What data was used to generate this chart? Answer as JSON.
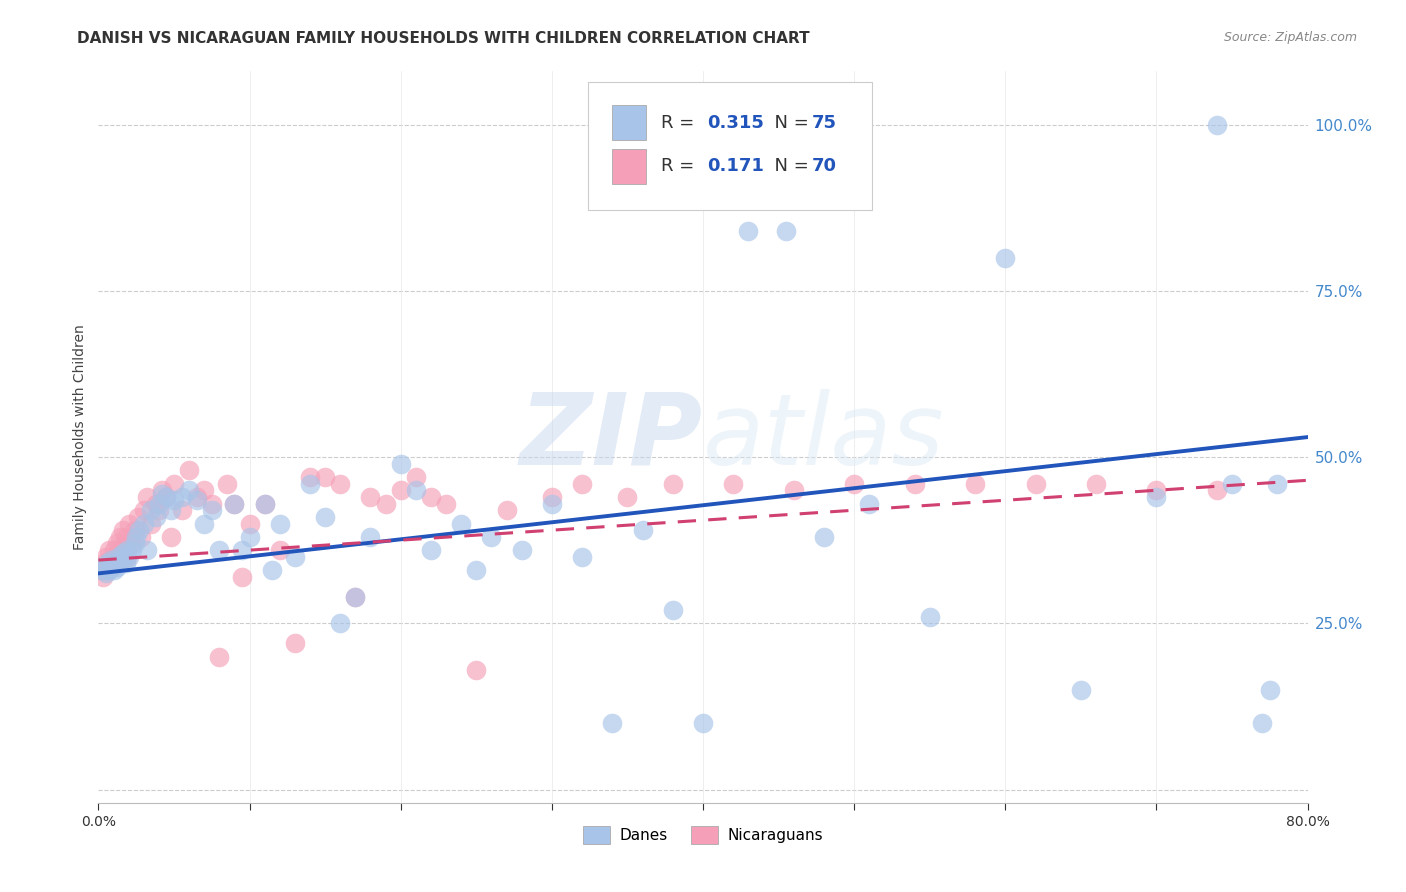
{
  "title": "DANISH VS NICARAGUAN FAMILY HOUSEHOLDS WITH CHILDREN CORRELATION CHART",
  "source": "Source: ZipAtlas.com",
  "ylabel": "Family Households with Children",
  "xlim": [
    0.0,
    0.8
  ],
  "ylim": [
    -0.02,
    1.08
  ],
  "ytick_vals": [
    0.0,
    0.25,
    0.5,
    0.75,
    1.0
  ],
  "xtick_vals": [
    0.0,
    0.1,
    0.2,
    0.3,
    0.4,
    0.5,
    0.6,
    0.7,
    0.8
  ],
  "danes_color": "#a8c4e8",
  "nicaraguans_color": "#f5a0b8",
  "danes_line_color": "#2255bb",
  "nicaraguans_line_color": "#d04070",
  "danes_R": 0.315,
  "danes_N": 75,
  "nicaraguans_R": 0.171,
  "nicaraguans_N": 70,
  "watermark_zip": "ZIP",
  "watermark_atlas": "atlas",
  "background_color": "#ffffff",
  "grid_color": "#cccccc",
  "title_fontsize": 11,
  "label_fontsize": 10,
  "tick_fontsize": 10,
  "legend_fontsize": 13,
  "danes_x": [
    0.003,
    0.004,
    0.005,
    0.006,
    0.007,
    0.008,
    0.009,
    0.01,
    0.011,
    0.012,
    0.013,
    0.014,
    0.015,
    0.016,
    0.017,
    0.018,
    0.019,
    0.02,
    0.022,
    0.024,
    0.025,
    0.027,
    0.03,
    0.032,
    0.035,
    0.038,
    0.04,
    0.042,
    0.045,
    0.048,
    0.05,
    0.055,
    0.06,
    0.065,
    0.07,
    0.075,
    0.08,
    0.09,
    0.095,
    0.1,
    0.11,
    0.115,
    0.12,
    0.13,
    0.14,
    0.15,
    0.16,
    0.17,
    0.18,
    0.2,
    0.21,
    0.22,
    0.24,
    0.25,
    0.26,
    0.28,
    0.3,
    0.32,
    0.34,
    0.36,
    0.38,
    0.4,
    0.43,
    0.455,
    0.48,
    0.51,
    0.55,
    0.6,
    0.65,
    0.7,
    0.74,
    0.75,
    0.77,
    0.775,
    0.78
  ],
  "danes_y": [
    0.335,
    0.33,
    0.325,
    0.34,
    0.33,
    0.345,
    0.335,
    0.33,
    0.34,
    0.335,
    0.35,
    0.34,
    0.345,
    0.355,
    0.35,
    0.34,
    0.36,
    0.35,
    0.36,
    0.37,
    0.38,
    0.39,
    0.4,
    0.36,
    0.42,
    0.41,
    0.43,
    0.445,
    0.44,
    0.42,
    0.435,
    0.44,
    0.45,
    0.435,
    0.4,
    0.42,
    0.36,
    0.43,
    0.36,
    0.38,
    0.43,
    0.33,
    0.4,
    0.35,
    0.46,
    0.41,
    0.25,
    0.29,
    0.38,
    0.49,
    0.45,
    0.36,
    0.4,
    0.33,
    0.38,
    0.36,
    0.43,
    0.35,
    0.1,
    0.39,
    0.27,
    0.1,
    0.84,
    0.84,
    0.38,
    0.43,
    0.26,
    0.8,
    0.15,
    0.44,
    1.0,
    0.46,
    0.1,
    0.15,
    0.46
  ],
  "nicaraguans_x": [
    0.002,
    0.003,
    0.004,
    0.005,
    0.006,
    0.007,
    0.008,
    0.009,
    0.01,
    0.011,
    0.012,
    0.013,
    0.014,
    0.015,
    0.016,
    0.017,
    0.018,
    0.019,
    0.02,
    0.022,
    0.024,
    0.026,
    0.028,
    0.03,
    0.032,
    0.035,
    0.038,
    0.04,
    0.042,
    0.045,
    0.048,
    0.05,
    0.055,
    0.06,
    0.065,
    0.07,
    0.075,
    0.08,
    0.085,
    0.09,
    0.095,
    0.1,
    0.11,
    0.12,
    0.13,
    0.14,
    0.15,
    0.16,
    0.17,
    0.18,
    0.19,
    0.2,
    0.21,
    0.22,
    0.23,
    0.25,
    0.27,
    0.3,
    0.32,
    0.35,
    0.38,
    0.42,
    0.46,
    0.5,
    0.54,
    0.58,
    0.62,
    0.66,
    0.7,
    0.74
  ],
  "nicaraguans_y": [
    0.33,
    0.32,
    0.34,
    0.35,
    0.33,
    0.36,
    0.345,
    0.335,
    0.36,
    0.34,
    0.37,
    0.35,
    0.38,
    0.36,
    0.39,
    0.37,
    0.38,
    0.35,
    0.4,
    0.37,
    0.39,
    0.41,
    0.38,
    0.42,
    0.44,
    0.4,
    0.43,
    0.42,
    0.45,
    0.44,
    0.38,
    0.46,
    0.42,
    0.48,
    0.44,
    0.45,
    0.43,
    0.2,
    0.46,
    0.43,
    0.32,
    0.4,
    0.43,
    0.36,
    0.22,
    0.47,
    0.47,
    0.46,
    0.29,
    0.44,
    0.43,
    0.45,
    0.47,
    0.44,
    0.43,
    0.18,
    0.42,
    0.44,
    0.46,
    0.44,
    0.46,
    0.46,
    0.45,
    0.46,
    0.46,
    0.46,
    0.46,
    0.46,
    0.45,
    0.45
  ],
  "danes_line_x0": 0.0,
  "danes_line_y0": 0.325,
  "danes_line_x1": 0.8,
  "danes_line_y1": 0.53,
  "nic_line_x0": 0.0,
  "nic_line_y0": 0.345,
  "nic_line_x1": 0.8,
  "nic_line_y1": 0.465
}
